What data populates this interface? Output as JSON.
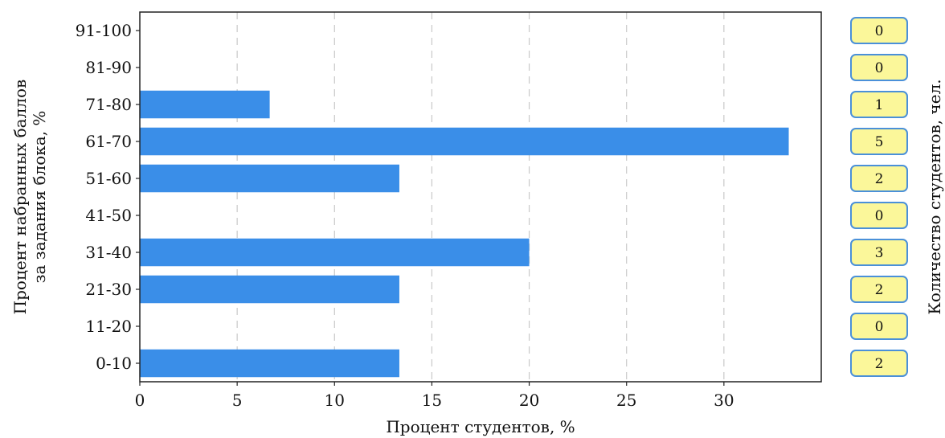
{
  "chart_data": {
    "type": "bar",
    "orientation": "horizontal",
    "categories": [
      "0-10",
      "11-20",
      "21-30",
      "31-40",
      "41-50",
      "51-60",
      "61-70",
      "71-80",
      "81-90",
      "91-100"
    ],
    "values": [
      13.33,
      0,
      13.33,
      20,
      0,
      13.33,
      33.33,
      6.67,
      0,
      0
    ],
    "counts": [
      2,
      0,
      2,
      3,
      0,
      2,
      5,
      1,
      0,
      0
    ],
    "xlabel": "Процент студентов, %",
    "ylabel_line1": "Процент набранных баллов",
    "ylabel_line2": "за задания блока, %",
    "right_label": "Количество студентов, чел.",
    "xlim": [
      0,
      35
    ],
    "xticks": [
      0,
      5,
      10,
      15,
      20,
      25,
      30
    ],
    "grid": "vertical-dashed",
    "bar_color": "#3a8ee8",
    "count_box_fill": "#fbf79a",
    "count_box_border": "#4a90d9"
  }
}
